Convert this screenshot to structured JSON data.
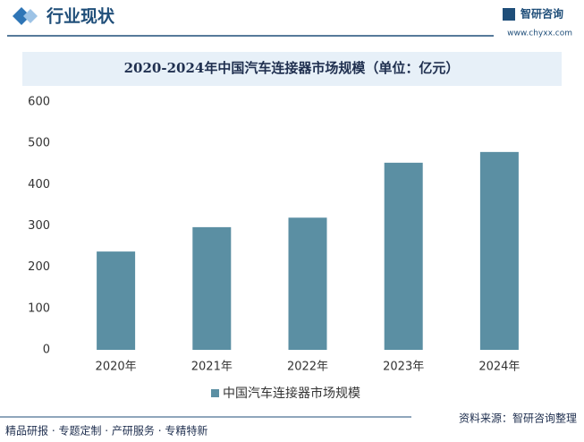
{
  "header": {
    "title": "行业现状",
    "logo": "智研咨询",
    "url": "www.chyxx.com"
  },
  "footer": {
    "left": "精品研报 · 专题定制 · 产研服务 · 专精特新",
    "right": "资料来源：智研咨询整理"
  },
  "chart_data": {
    "type": "bar",
    "title": "2020-2024年中国汽车连接器市场规模（单位：亿元）",
    "categories": [
      "2020年",
      "2021年",
      "2022年",
      "2023年",
      "2024年"
    ],
    "series": [
      {
        "name": "中国汽车连接器市场规模",
        "color": "#5b8fa3",
        "values": [
          238,
          297,
          320,
          453,
          479
        ]
      }
    ],
    "ylim": [
      0,
      600
    ],
    "yticks": [
      0,
      100,
      200,
      300,
      400,
      500,
      600
    ],
    "grid": false,
    "legend": "bottom"
  }
}
